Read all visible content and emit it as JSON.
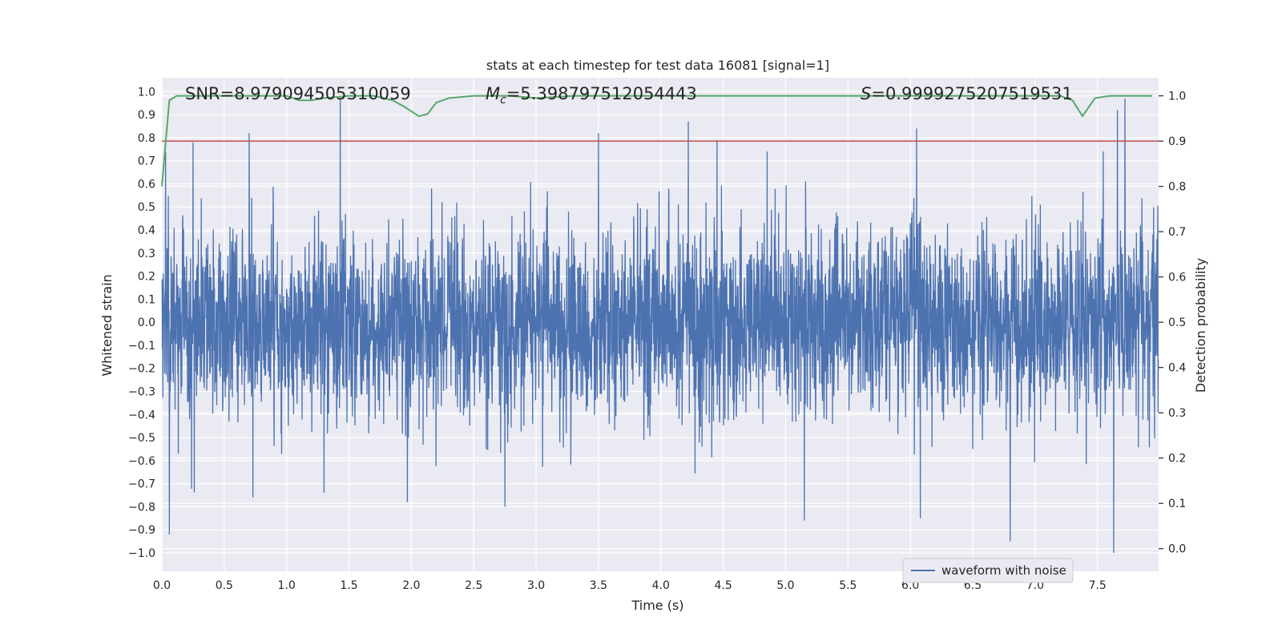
{
  "chart_data": {
    "type": "line",
    "title": "stats at each timestep for test data 16081 [signal=1]",
    "xlabel": "Time (s)",
    "ylabel": "Whitened strain",
    "y2label": "Detection probability",
    "xlim": [
      0.0,
      7.99
    ],
    "ylim": [
      -1.08,
      1.06
    ],
    "y2lim": [
      -0.05,
      1.04
    ],
    "x_ticks": [
      0.0,
      0.5,
      1.0,
      1.5,
      2.0,
      2.5,
      3.0,
      3.5,
      4.0,
      4.5,
      5.0,
      5.5,
      6.0,
      6.5,
      7.0,
      7.5
    ],
    "x_tick_labels": [
      "0.0",
      "0.5",
      "1.0",
      "1.5",
      "2.0",
      "2.5",
      "3.0",
      "3.5",
      "4.0",
      "4.5",
      "5.0",
      "5.5",
      "6.0",
      "6.5",
      "7.0",
      "7.5"
    ],
    "y_ticks": [
      1.0,
      0.9,
      0.8,
      0.7,
      0.6,
      0.5,
      0.4,
      0.3,
      0.2,
      0.1,
      0.0,
      -0.1,
      -0.2,
      -0.3,
      -0.4,
      -0.5,
      -0.6,
      -0.7,
      -0.8,
      -0.9,
      -1.0
    ],
    "y_tick_labels": [
      "1.0",
      "0.9",
      "0.8",
      "0.7",
      "0.6",
      "0.5",
      "0.4",
      "0.3",
      "0.2",
      "0.1",
      "0.0",
      "−0.1",
      "−0.2",
      "−0.3",
      "−0.4",
      "−0.5",
      "−0.6",
      "−0.7",
      "−0.8",
      "−0.9",
      "−1.0"
    ],
    "y2_ticks": [
      1.0,
      0.9,
      0.8,
      0.7,
      0.6,
      0.5,
      0.4,
      0.3,
      0.2,
      0.1,
      0.0
    ],
    "y2_tick_labels": [
      "1.0",
      "0.9",
      "0.8",
      "0.7",
      "0.6",
      "0.5",
      "0.4",
      "0.3",
      "0.2",
      "0.1",
      "0.0"
    ],
    "grid": true,
    "legend": {
      "placement": "lower-right",
      "entries": [
        "waveform with noise"
      ]
    },
    "annotations": {
      "snr": "SNR=8.979094505310059",
      "mc_symbol": "M",
      "mc_sub": "c",
      "mc_value": "=5.398797512054443",
      "s_symbol": "S",
      "s_value": "=0.9999275207519531"
    },
    "threshold": {
      "axis": "y2",
      "value": 0.9,
      "color": "#c44e52"
    },
    "probability_series": {
      "axis": "y2",
      "color": "#55a868",
      "x": [
        0.0,
        0.06,
        0.12,
        0.2,
        0.5,
        1.0,
        1.1,
        1.2,
        1.3,
        1.5,
        1.7,
        1.85,
        1.95,
        2.06,
        2.13,
        2.2,
        2.3,
        2.5,
        2.8,
        3.0,
        3.3,
        4.0,
        5.0,
        6.0,
        6.5,
        7.0,
        7.2,
        7.3,
        7.38,
        7.48,
        7.6,
        8.0
      ],
      "y": [
        0.8,
        0.99,
        1.0,
        1.0,
        1.0,
        1.0,
        0.99,
        0.99,
        0.995,
        1.0,
        1.0,
        0.99,
        0.975,
        0.955,
        0.96,
        0.985,
        0.995,
        1.0,
        1.0,
        0.995,
        1.0,
        1.0,
        1.0,
        1.0,
        1.0,
        1.0,
        1.0,
        0.99,
        0.955,
        0.995,
        1.0,
        1.0
      ]
    },
    "series": [
      {
        "name": "waveform with noise",
        "axis": "y",
        "color": "#4c72b0",
        "sample_rate_hz": 500,
        "noise_sigma": 0.2,
        "spikes": [
          {
            "x": 0.03,
            "y": 0.74
          },
          {
            "x": 0.06,
            "y": -0.92
          },
          {
            "x": 0.25,
            "y": 0.78
          },
          {
            "x": 0.7,
            "y": 0.82
          },
          {
            "x": 0.73,
            "y": -0.76
          },
          {
            "x": 1.43,
            "y": 0.97
          },
          {
            "x": 1.3,
            "y": -0.74
          },
          {
            "x": 2.75,
            "y": -0.8
          },
          {
            "x": 3.5,
            "y": 0.82
          },
          {
            "x": 4.22,
            "y": 0.87
          },
          {
            "x": 4.45,
            "y": 0.79
          },
          {
            "x": 5.15,
            "y": -0.86
          },
          {
            "x": 6.05,
            "y": 0.84
          },
          {
            "x": 6.08,
            "y": -0.85
          },
          {
            "x": 6.8,
            "y": -0.95
          },
          {
            "x": 7.63,
            "y": -1.0
          },
          {
            "x": 7.66,
            "y": 0.92
          },
          {
            "x": 7.72,
            "y": 0.97
          }
        ]
      }
    ]
  }
}
